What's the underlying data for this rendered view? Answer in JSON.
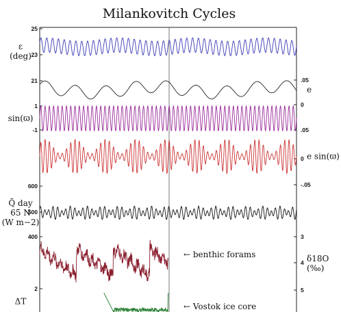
{
  "chart_data": {
    "type": "line",
    "title": "Milankovitch Cycles",
    "panels": [
      {
        "id": "obliquity",
        "label_left": [
          "ε",
          "(deg)"
        ],
        "ticks_left": [
          "25",
          "23",
          "21"
        ],
        "color": "#3a3ab8",
        "range": [
          21,
          25
        ],
        "series": {
          "name": "obliquity",
          "components": [
            {
              "amp": 0.65,
              "cycles": 44.0,
              "phase": 0.3
            },
            {
              "amp": 0.15,
              "cycles": 3.5,
              "phase": 1.1
            }
          ],
          "mean": 23.4
        }
      },
      {
        "id": "eccentricity",
        "label_right": [
          "e"
        ],
        "ticks_right": [
          ".05",
          "0"
        ],
        "ticks_left": [
          "1"
        ],
        "color": "#222222",
        "range": [
          0,
          0.06
        ],
        "series": {
          "name": "eccentricity",
          "components": [
            {
              "amp": 0.012,
              "cycles": 8.5,
              "phase": 0.4
            },
            {
              "amp": 0.006,
              "cycles": 2.1,
              "phase": 2.0
            }
          ],
          "mean": 0.03
        }
      },
      {
        "id": "precession-sine",
        "label_left": [
          "sin(ϖ)"
        ],
        "ticks_left": [
          "-1"
        ],
        "ticks_right": [
          ".05"
        ],
        "color": "#9a2a9a",
        "range": [
          -1,
          1
        ],
        "series": {
          "name": "sin(varpi)",
          "components": [
            {
              "amp": 0.95,
              "cycles": 60.0,
              "phase": 0.0
            }
          ],
          "mean": 0
        }
      },
      {
        "id": "climatic-precession",
        "label_right": [
          "e sin(ϖ)"
        ],
        "ticks_right": [
          "0",
          "-.05"
        ],
        "color": "#cc3333",
        "range": [
          -0.06,
          0.06
        ],
        "series": {
          "name": "e sin(varpi)",
          "components": [
            {
              "amp": 0.045,
              "cycles": 60.0,
              "phase": 0.0
            }
          ],
          "envelope": {
            "cycles": 8.5,
            "phase": 0.4,
            "floor": 0.15
          },
          "mean": 0
        }
      },
      {
        "id": "insolation",
        "label_left": [
          "Q̄ day",
          "65 N",
          "(W m−2)"
        ],
        "ticks_left": [
          "600",
          "500",
          "400"
        ],
        "color": "#111111",
        "range": [
          400,
          600
        ],
        "series": {
          "name": "insolation",
          "components": [
            {
              "amp": 22,
              "cycles": 60.0,
              "phase": 0.7
            },
            {
              "amp": 12,
              "cycles": 44.0,
              "phase": 0.3
            }
          ],
          "mean": 500
        }
      },
      {
        "id": "benthic",
        "label_right": [
          "δ18O",
          "(‰)"
        ],
        "ticks_right": [
          "3",
          "4",
          "5"
        ],
        "ticks_left": [
          "2"
        ],
        "annotation": "← benthic forams",
        "color": "#8a1f2e",
        "range": [
          3,
          5
        ],
        "series": {
          "name": "benthic forams",
          "sawtooth_cycles": 7.0,
          "noise_amp": 0.25,
          "extent": [
            0,
            0.5
          ]
        }
      },
      {
        "id": "vostok",
        "label_left": [
          "ΔT"
        ],
        "annotation": "← Vostok ice core",
        "color": "#1f7a2a",
        "range": [
          -10,
          4
        ],
        "series": {
          "name": "Vostok ice core",
          "spike_cycles": 4.0,
          "extent": [
            0.25,
            0.5
          ]
        }
      }
    ]
  }
}
